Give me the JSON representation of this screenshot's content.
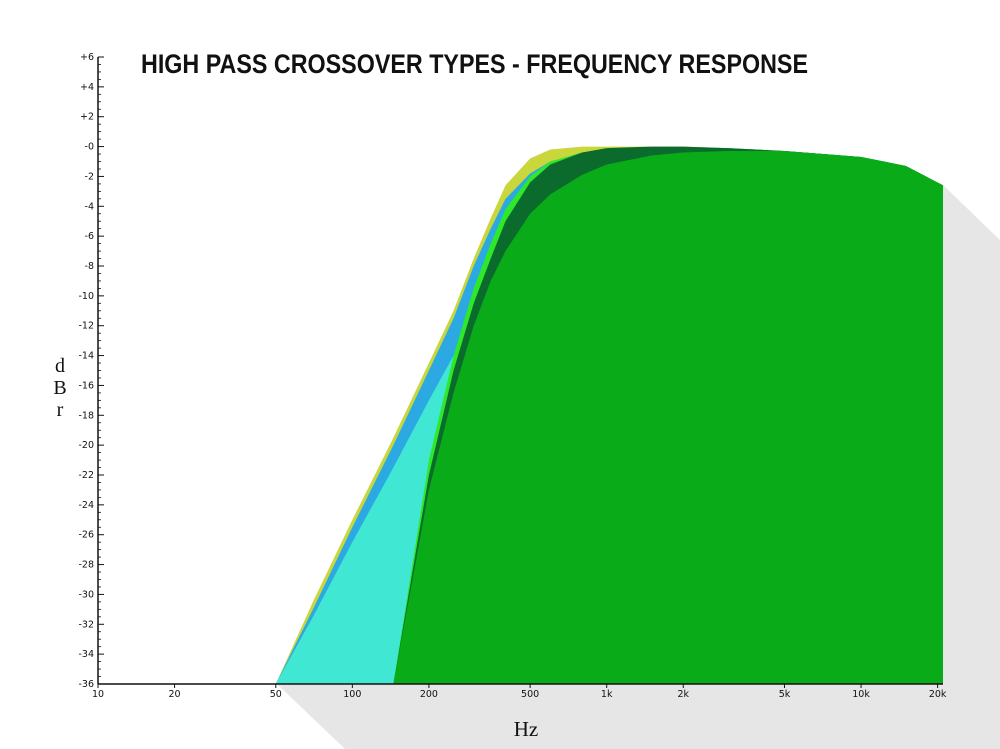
{
  "chart_data": {
    "type": "area",
    "title": "HIGH PASS CROSSOVER TYPES - FREQUENCY RESPONSE",
    "x_label": "Hz",
    "y_label": "dBr",
    "log_x": true,
    "xlim": [
      10,
      21000
    ],
    "xticks": [
      10,
      20,
      50,
      100,
      200,
      500,
      {
        "value": 1000,
        "label": "1k"
      },
      {
        "value": 2000,
        "label": "2k"
      },
      {
        "value": 5000,
        "label": "5k"
      },
      {
        "value": 10000,
        "label": "10k"
      },
      {
        "value": 20000,
        "label": "20k"
      }
    ],
    "ylim": [
      -36,
      6
    ],
    "yticks": [
      {
        "value": 6,
        "label": "+6"
      },
      {
        "value": 4,
        "label": "+4"
      },
      {
        "value": 2,
        "label": "+2"
      },
      {
        "value": 0,
        "label": "-0"
      },
      -2,
      -4,
      -6,
      -8,
      -10,
      -12,
      -14,
      -16,
      -18,
      -20,
      -22,
      -24,
      -26,
      -28,
      -30,
      -32,
      -34,
      -36
    ],
    "x": [
      50,
      70,
      100,
      145,
      200,
      250,
      300,
      350,
      400,
      500,
      600,
      800,
      1000,
      1500,
      2000,
      3000,
      5000,
      10000,
      15000,
      21000
    ],
    "series": [
      {
        "color": "#c9d63c",
        "values": [
          -36,
          -30.5,
          -25,
          -19.5,
          -14.5,
          -11,
          -7.5,
          -4.8,
          -2.6,
          -0.8,
          -0.2,
          0,
          0,
          0,
          0,
          -0.1,
          -0.3,
          -0.7,
          -1.3,
          -2.6
        ]
      },
      {
        "color": "#2ca9e3",
        "values": [
          -36,
          -31,
          -25.5,
          -20,
          -15,
          -11.5,
          -8,
          -5.5,
          -3.5,
          -1.8,
          -1,
          -0.5,
          -0.3,
          -0.2,
          -0.2,
          -0.2,
          -0.3,
          -0.7,
          -1.3,
          -2.6
        ]
      },
      {
        "color": "#40e8d4",
        "values": [
          -36,
          -31.5,
          -26.5,
          -21.5,
          -17,
          -14,
          -11.5,
          -9.5,
          -8,
          -6,
          -4.5,
          -3,
          -2,
          -1,
          -0.6,
          -0.4,
          -0.4,
          -0.7,
          -1.3,
          -2.6
        ]
      },
      {
        "color": "#2ee82a",
        "values": [
          -36,
          -36,
          -36,
          -36,
          -21,
          -14,
          -9.5,
          -6.5,
          -4.2,
          -2,
          -1,
          -0.4,
          -0.2,
          -0.1,
          -0.1,
          -0.1,
          -0.3,
          -0.7,
          -1.3,
          -2.6
        ]
      },
      {
        "color": "#0b6b2d",
        "values": [
          -36,
          -36,
          -36,
          -36,
          -22,
          -15,
          -10.5,
          -7.5,
          -5,
          -2.4,
          -1.2,
          -0.4,
          -0.1,
          0,
          0,
          -0.1,
          -0.3,
          -0.7,
          -1.3,
          -2.6
        ]
      },
      {
        "color": "#0aab18",
        "values": [
          -36,
          -36,
          -36,
          -36,
          -23,
          -16.5,
          -12,
          -9,
          -7,
          -4.5,
          -3.2,
          -1.9,
          -1.2,
          -0.6,
          -0.4,
          -0.3,
          -0.3,
          -0.7,
          -1.3,
          -2.6
        ]
      }
    ]
  }
}
